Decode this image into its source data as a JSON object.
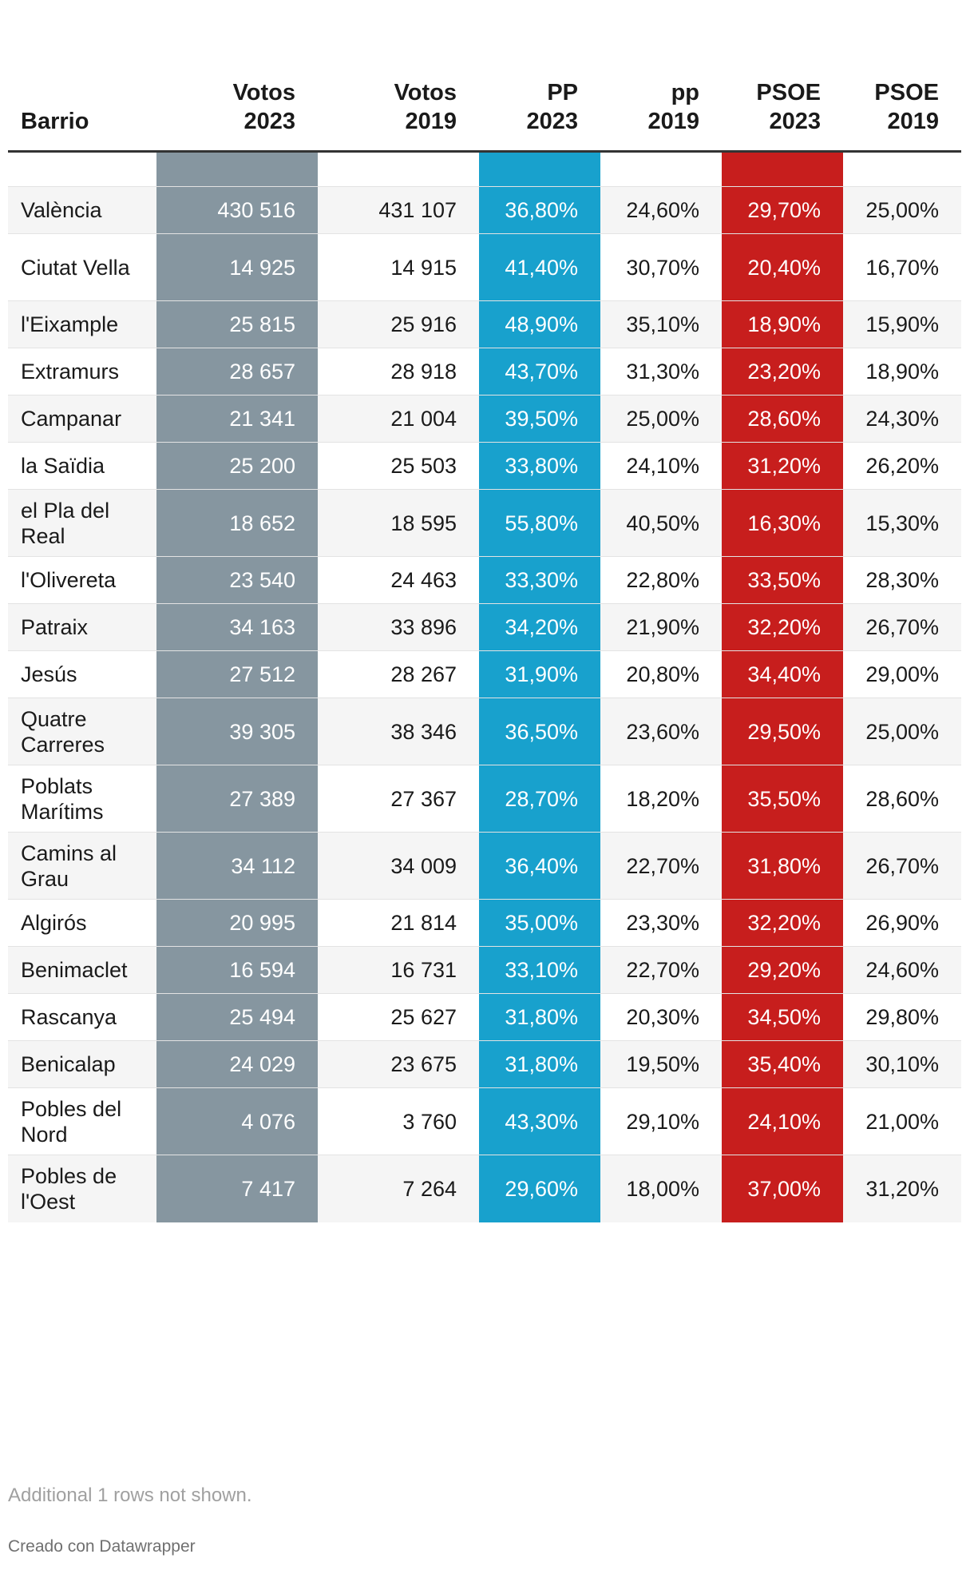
{
  "chart_data": {
    "type": "table",
    "columns": [
      {
        "line1": "",
        "line2": "Barrio"
      },
      {
        "line1": "Votos",
        "line2": "2023"
      },
      {
        "line1": "Votos",
        "line2": "2019"
      },
      {
        "line1": "PP",
        "line2": "2023"
      },
      {
        "line1": "pp",
        "line2": "2019"
      },
      {
        "line1": "PSOE",
        "line2": "2023"
      },
      {
        "line1": "PSOE",
        "line2": "2019"
      }
    ],
    "rows": [
      {
        "name": "València",
        "votos2023": "430 516",
        "votos2019": "431 107",
        "pp2023": "36,80%",
        "pp2019": "24,60%",
        "psoe2023": "29,70%",
        "psoe2019": "25,00%"
      },
      {
        "name": "Ciutat Vella",
        "votos2023": "14 925",
        "votos2019": "14 915",
        "pp2023": "41,40%",
        "pp2019": "30,70%",
        "psoe2023": "20,40%",
        "psoe2019": "16,70%"
      },
      {
        "name": "l'Eixample",
        "votos2023": "25 815",
        "votos2019": "25 916",
        "pp2023": "48,90%",
        "pp2019": "35,10%",
        "psoe2023": "18,90%",
        "psoe2019": "15,90%"
      },
      {
        "name": "Extramurs",
        "votos2023": "28 657",
        "votos2019": "28 918",
        "pp2023": "43,70%",
        "pp2019": "31,30%",
        "psoe2023": "23,20%",
        "psoe2019": "18,90%"
      },
      {
        "name": "Campanar",
        "votos2023": "21 341",
        "votos2019": "21 004",
        "pp2023": "39,50%",
        "pp2019": "25,00%",
        "psoe2023": "28,60%",
        "psoe2019": "24,30%"
      },
      {
        "name": "la Saïdia",
        "votos2023": "25 200",
        "votos2019": "25 503",
        "pp2023": "33,80%",
        "pp2019": "24,10%",
        "psoe2023": "31,20%",
        "psoe2019": "26,20%"
      },
      {
        "name": "el Pla del Real",
        "votos2023": "18 652",
        "votos2019": "18 595",
        "pp2023": "55,80%",
        "pp2019": "40,50%",
        "psoe2023": "16,30%",
        "psoe2019": "15,30%"
      },
      {
        "name": "l'Olivereta",
        "votos2023": "23 540",
        "votos2019": "24 463",
        "pp2023": "33,30%",
        "pp2019": "22,80%",
        "psoe2023": "33,50%",
        "psoe2019": "28,30%"
      },
      {
        "name": "Patraix",
        "votos2023": "34 163",
        "votos2019": "33 896",
        "pp2023": "34,20%",
        "pp2019": "21,90%",
        "psoe2023": "32,20%",
        "psoe2019": "26,70%"
      },
      {
        "name": "Jesús",
        "votos2023": "27 512",
        "votos2019": "28 267",
        "pp2023": "31,90%",
        "pp2019": "20,80%",
        "psoe2023": "34,40%",
        "psoe2019": "29,00%"
      },
      {
        "name": "Quatre Carreres",
        "votos2023": "39 305",
        "votos2019": "38 346",
        "pp2023": "36,50%",
        "pp2019": "23,60%",
        "psoe2023": "29,50%",
        "psoe2019": "25,00%"
      },
      {
        "name": "Poblats Marítims",
        "votos2023": "27 389",
        "votos2019": "27 367",
        "pp2023": "28,70%",
        "pp2019": "18,20%",
        "psoe2023": "35,50%",
        "psoe2019": "28,60%"
      },
      {
        "name": "Camins al Grau",
        "votos2023": "34 112",
        "votos2019": "34 009",
        "pp2023": "36,40%",
        "pp2019": "22,70%",
        "psoe2023": "31,80%",
        "psoe2019": "26,70%"
      },
      {
        "name": "Algirós",
        "votos2023": "20 995",
        "votos2019": "21 814",
        "pp2023": "35,00%",
        "pp2019": "23,30%",
        "psoe2023": "32,20%",
        "psoe2019": "26,90%"
      },
      {
        "name": "Benimaclet",
        "votos2023": "16 594",
        "votos2019": "16 731",
        "pp2023": "33,10%",
        "pp2019": "22,70%",
        "psoe2023": "29,20%",
        "psoe2019": "24,60%"
      },
      {
        "name": "Rascanya",
        "votos2023": "25 494",
        "votos2019": "25 627",
        "pp2023": "31,80%",
        "pp2019": "20,30%",
        "psoe2023": "34,50%",
        "psoe2019": "29,80%"
      },
      {
        "name": "Benicalap",
        "votos2023": "24 029",
        "votos2019": "23 675",
        "pp2023": "31,80%",
        "pp2019": "19,50%",
        "psoe2023": "35,40%",
        "psoe2019": "30,10%"
      },
      {
        "name": "Pobles del Nord",
        "votos2023": "4 076",
        "votos2019": "3 760",
        "pp2023": "43,30%",
        "pp2019": "29,10%",
        "psoe2023": "24,10%",
        "psoe2019": "21,00%"
      },
      {
        "name": "Pobles de l'Oest",
        "votos2023": "7 417",
        "votos2019": "7 264",
        "pp2023": "29,60%",
        "pp2019": "18,00%",
        "psoe2023": "37,00%",
        "psoe2019": "31,20%"
      }
    ],
    "colors": {
      "votos2023": "#8696a0",
      "pp2023": "#18a1cd",
      "psoe2023": "#c71e1d"
    }
  },
  "footer": {
    "note": "Additional 1 rows not shown.",
    "credit": "Creado con Datawrapper"
  }
}
